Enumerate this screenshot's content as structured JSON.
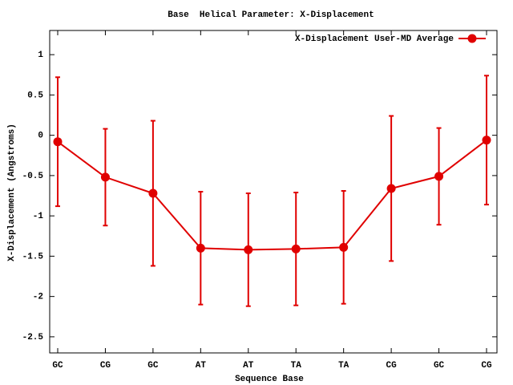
{
  "chart_data": {
    "type": "line",
    "title": "Base  Helical Parameter: X-Displacement",
    "x_label": "Sequence Base",
    "y_label": "X-Displacement (Angstroms)",
    "categories": [
      "GC",
      "CG",
      "GC",
      "AT",
      "AT",
      "TA",
      "TA",
      "CG",
      "GC",
      "CG"
    ],
    "series": [
      {
        "name": "X-Displacement User-MD Average",
        "color": "#e00000",
        "values": [
          -0.08,
          -0.52,
          -0.72,
          -1.4,
          -1.42,
          -1.41,
          -1.39,
          -0.66,
          -0.51,
          -0.06
        ],
        "errors": [
          0.8,
          0.6,
          0.9,
          0.7,
          0.7,
          0.7,
          0.7,
          0.9,
          0.6,
          0.8
        ]
      }
    ],
    "ylim": [
      -2.7,
      1.3
    ],
    "yticks": [
      1,
      0.5,
      0,
      -0.5,
      -1,
      -1.5,
      -2,
      -2.5
    ],
    "legend": "top-right"
  }
}
